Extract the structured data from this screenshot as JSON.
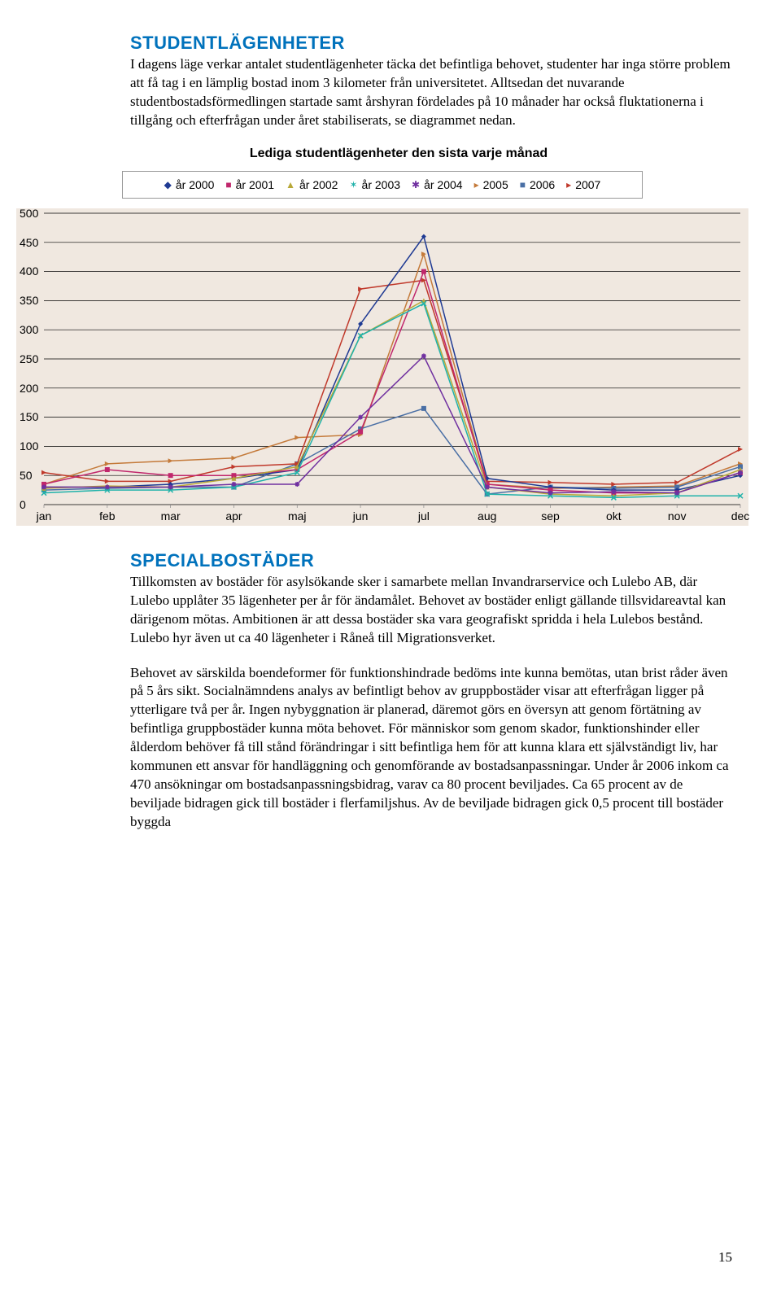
{
  "section1": {
    "heading": "STUDENTLÄGENHETER",
    "p1": "I dagens läge verkar antalet studentlägenheter täcka det befintliga behovet, studenter har inga större problem att få tag i en lämplig bostad inom 3 kilometer från universitetet. Alltsedan det nuvarande studentbostadsförmedlingen startade samt årshyran fördelades på 10 månader har också fluktationerna i tillgång och efterfrågan under året stabiliserats, se diagrammet nedan."
  },
  "chart": {
    "title": "Lediga studentlägenheter den sista varje månad",
    "title_fontsize": 16,
    "background_color": "#f0e8e0",
    "grid_color": "#000000",
    "ylabel_fontsize": 14,
    "ylim": [
      0,
      500
    ],
    "ytick_step": 50,
    "yticks": [
      0,
      50,
      100,
      150,
      200,
      250,
      300,
      350,
      400,
      450,
      500
    ],
    "months": [
      "jan",
      "feb",
      "mar",
      "apr",
      "maj",
      "jun",
      "jul",
      "aug",
      "sep",
      "okt",
      "nov",
      "dec"
    ],
    "legend": [
      {
        "label": "år 2000",
        "marker": "◆",
        "color": "#1f3a93"
      },
      {
        "label": "år 2001",
        "marker": "■",
        "color": "#c0276c"
      },
      {
        "label": "år 2002",
        "marker": "▲",
        "color": "#b8a838"
      },
      {
        "label": "år 2003",
        "marker": "✶",
        "color": "#20b2aa"
      },
      {
        "label": "år 2004",
        "marker": "✱",
        "color": "#7030a0"
      },
      {
        "label": "2005",
        "marker": "▸",
        "color": "#c47a3a"
      },
      {
        "label": "2006",
        "marker": "■",
        "color": "#4a6fa5"
      },
      {
        "label": "2007",
        "marker": "▸",
        "color": "#c0392b"
      }
    ],
    "series": {
      "år 2000": {
        "color": "#1f3a93",
        "marker": "diamond",
        "values": [
          30,
          30,
          35,
          45,
          60,
          310,
          460,
          45,
          30,
          25,
          25,
          50
        ]
      },
      "år 2001": {
        "color": "#c0276c",
        "marker": "square",
        "values": [
          35,
          60,
          50,
          50,
          60,
          125,
          400,
          35,
          25,
          20,
          20,
          55
        ]
      },
      "år 2002": {
        "color": "#b8a838",
        "marker": "triangle",
        "values": [
          28,
          32,
          30,
          45,
          65,
          290,
          350,
          30,
          18,
          15,
          20,
          60
        ]
      },
      "år 2003": {
        "color": "#20b2aa",
        "marker": "x",
        "values": [
          20,
          25,
          25,
          30,
          55,
          290,
          345,
          18,
          15,
          12,
          15,
          15
        ]
      },
      "år 2004": {
        "color": "#7030a0",
        "marker": "star",
        "values": [
          30,
          30,
          30,
          35,
          35,
          150,
          255,
          30,
          20,
          22,
          20,
          55
        ]
      },
      "2005": {
        "color": "#c47a3a",
        "marker": "rtri",
        "values": [
          35,
          70,
          75,
          80,
          115,
          120,
          430,
          35,
          28,
          30,
          32,
          70
        ]
      },
      "2006": {
        "color": "#4a6fa5",
        "marker": "square",
        "values": [
          25,
          28,
          30,
          30,
          70,
          130,
          165,
          18,
          30,
          28,
          30,
          65
        ]
      },
      "2007": {
        "color": "#c0392b",
        "marker": "rtri",
        "values": [
          55,
          40,
          40,
          65,
          70,
          370,
          385,
          40,
          38,
          35,
          38,
          95
        ]
      }
    },
    "line_width": 1.5,
    "marker_size": 6
  },
  "section2": {
    "heading": "SPECIALBOSTÄDER",
    "p1": "Tillkomsten av bostäder för asylsökande sker i samarbete mellan Invandrarservice och Lulebo AB, där Lulebo upplåter 35 lägenheter per år för ändamålet. Behovet av bostäder enligt gällande tillsvidareavtal kan därigenom mötas. Ambitionen är att dessa bostäder ska vara geografiskt spridda i hela Lulebos bestånd. Lulebo hyr även ut ca 40 lägenheter i Råneå till Migrationsverket.",
    "p2": "Behovet av särskilda boendeformer för funktionshindrade bedöms inte kunna bemötas, utan brist råder även på 5 års sikt. Socialnämndens analys av befintligt behov av gruppbostäder visar att efterfrågan ligger på ytterligare två per år. Ingen nybyggnation är planerad, däremot görs en översyn att genom förtätning av befintliga gruppbostäder kunna möta behovet. För människor som genom skador, funktionshinder eller ålderdom behöver få till stånd förändringar i sitt befintliga hem för att kunna klara ett självständigt liv, har kommunen ett ansvar för handläggning och genomförande av bostadsanpassningar. Under år 2006 inkom ca 470 ansökningar om bostadsanpassningsbidrag, varav ca 80 procent beviljades. Ca 65 procent av de beviljade bidragen gick till bostäder i flerfamiljshus. Av de beviljade bidragen gick 0,5 procent till bostäder byggda"
  },
  "page_number": "15"
}
